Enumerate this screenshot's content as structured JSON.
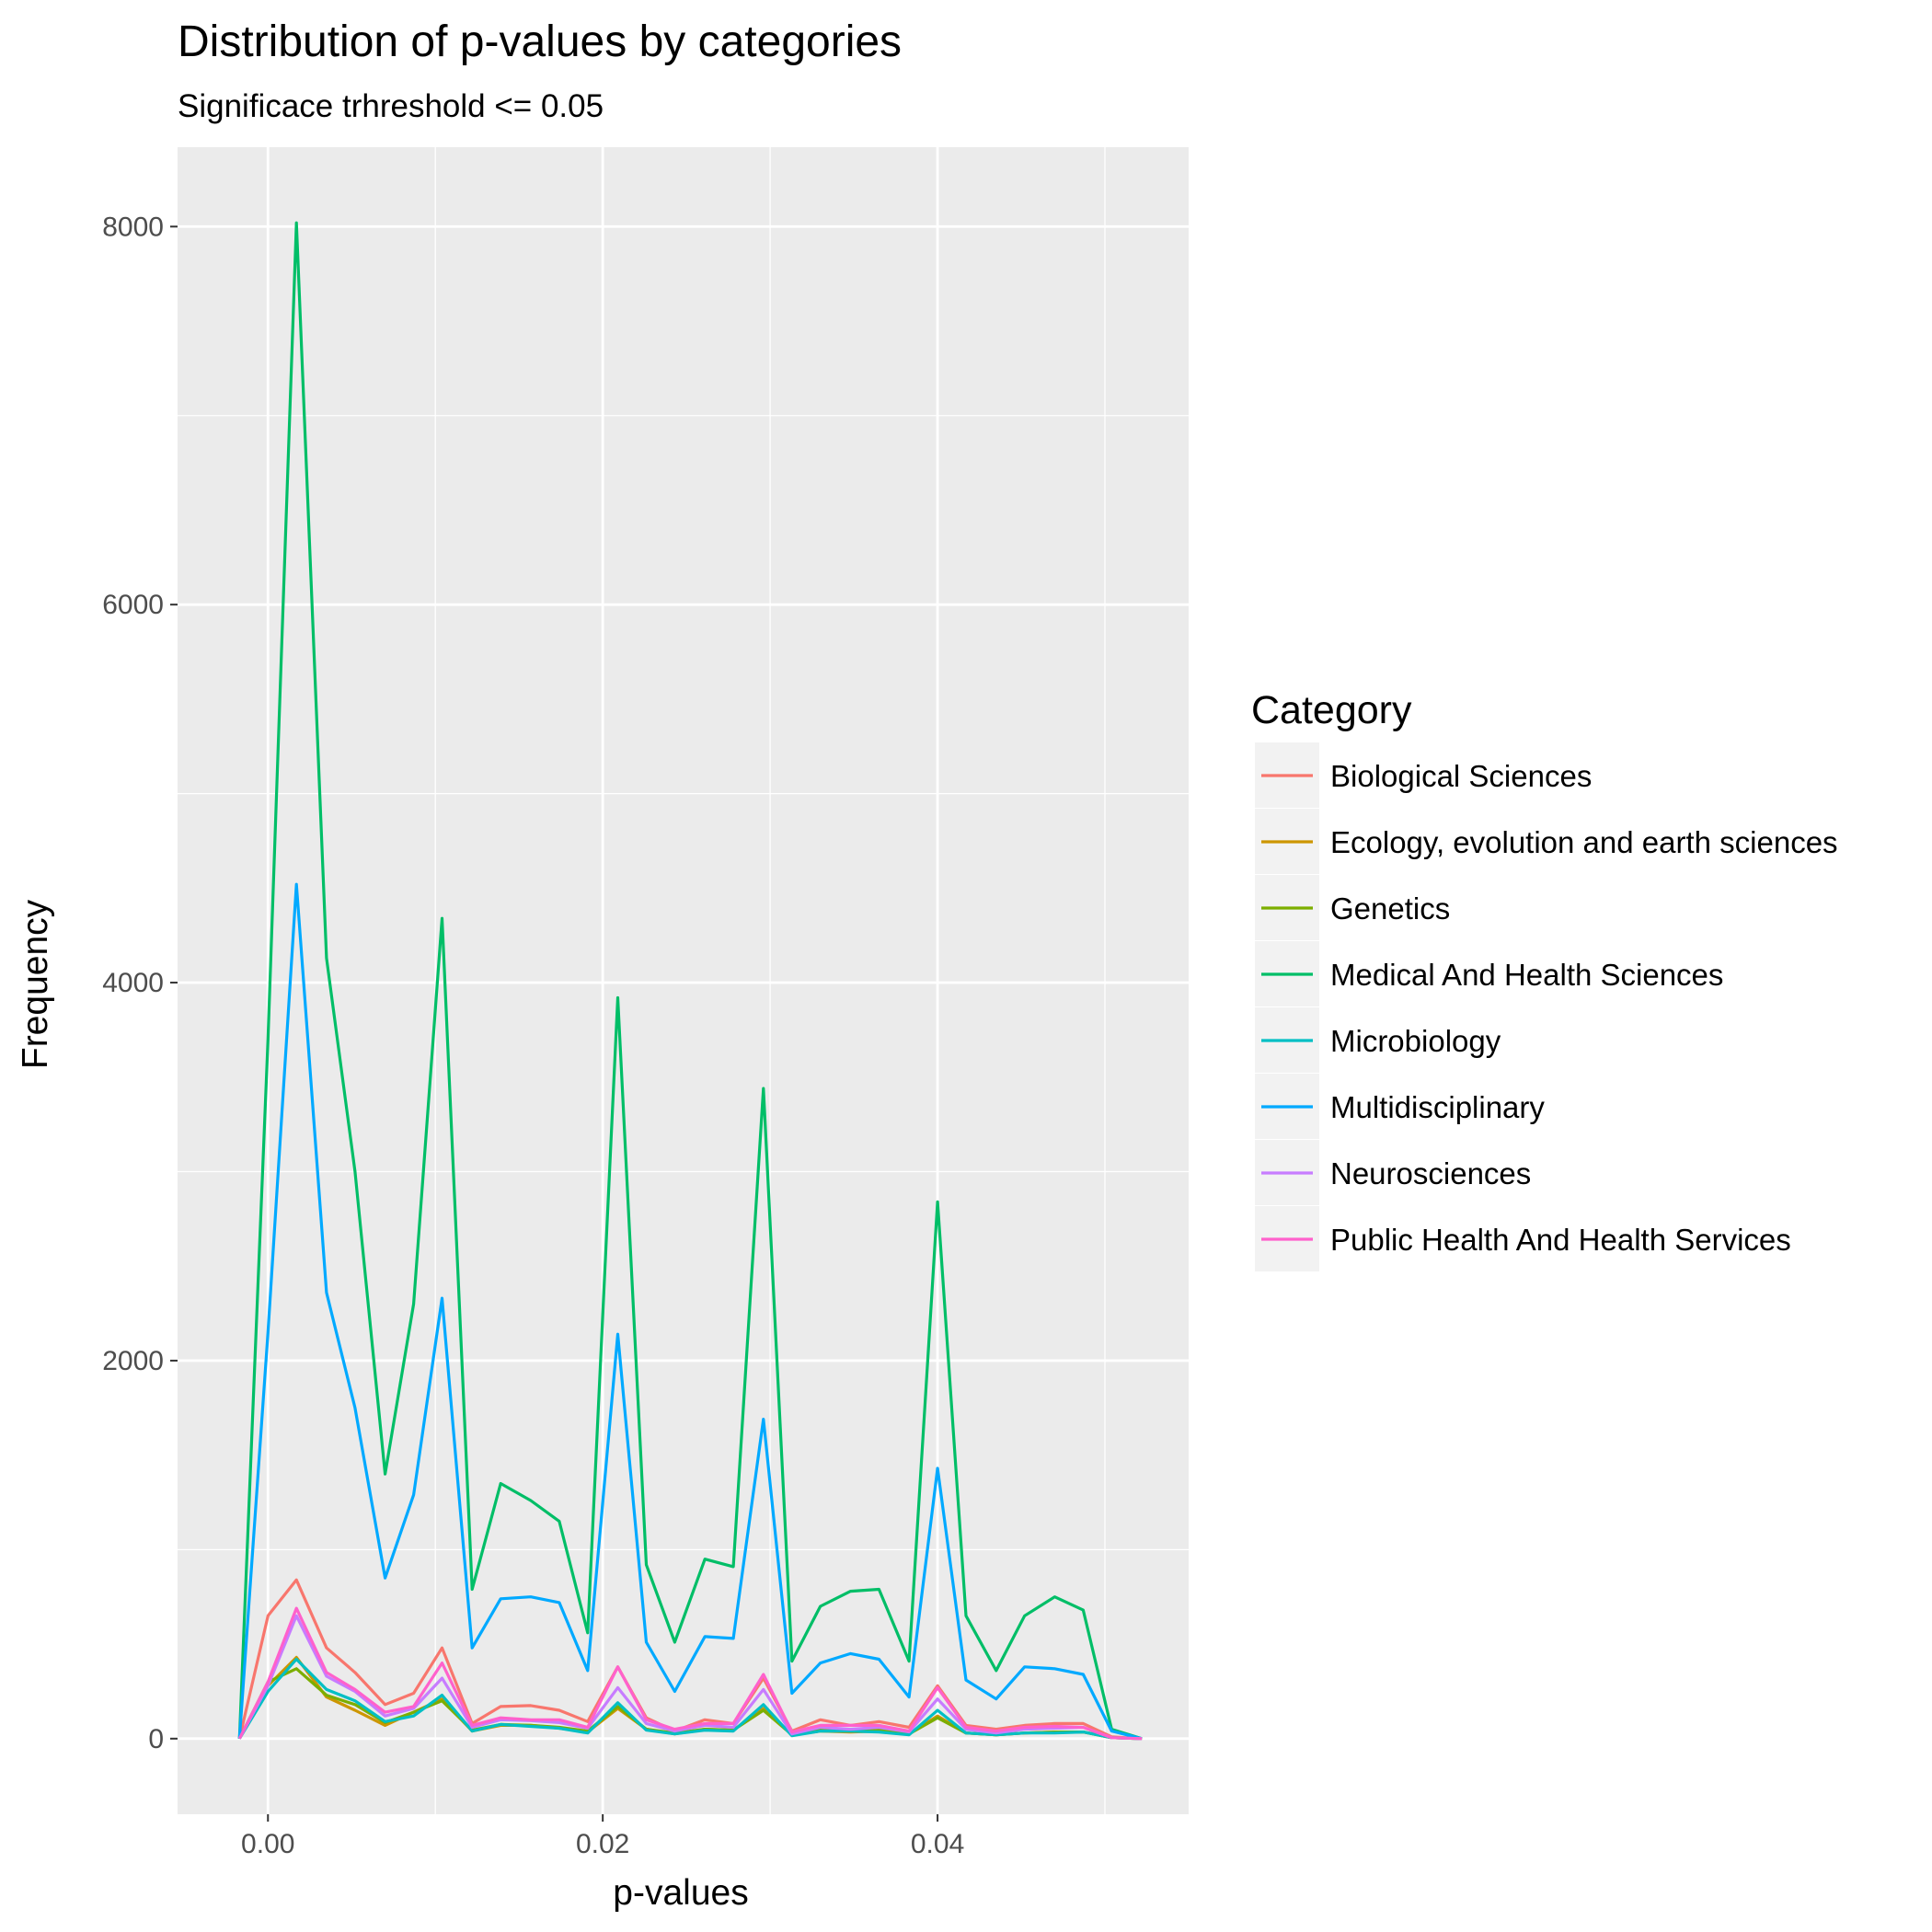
{
  "chart_data": {
    "type": "line",
    "title": "Distribution of p-values by categories",
    "subtitle": "Significace trhreshold <= 0.05",
    "xlabel": "p-values",
    "ylabel": "Frequency",
    "xlim": [
      -0.0054,
      0.055
    ],
    "ylim": [
      -400,
      8420
    ],
    "x_ticks": [
      0.0,
      0.02,
      0.04
    ],
    "x_tick_labels": [
      "0.00",
      "0.02",
      "0.04"
    ],
    "y_ticks": [
      0,
      2000,
      4000,
      6000,
      8000
    ],
    "y_tick_labels": [
      "0",
      "2000",
      "4000",
      "6000",
      "8000"
    ],
    "grid": true,
    "legend": {
      "title": "Category",
      "position": "right"
    },
    "x": [
      -0.0017,
      0.0,
      0.0017,
      0.0035,
      0.0052,
      0.007,
      0.0087,
      0.0104,
      0.0122,
      0.0139,
      0.0157,
      0.0174,
      0.0191,
      0.0209,
      0.0226,
      0.0243,
      0.0261,
      0.0278,
      0.0296,
      0.0313,
      0.033,
      0.0348,
      0.0365,
      0.0383,
      0.04,
      0.0417,
      0.0435,
      0.0452,
      0.047,
      0.0487,
      0.0504,
      0.0522
    ],
    "series": [
      {
        "name": "Biological Sciences",
        "color": "#F8766D",
        "values": [
          0,
          650,
          840,
          480,
          350,
          180,
          240,
          480,
          80,
          170,
          175,
          150,
          90,
          380,
          110,
          40,
          100,
          80,
          320,
          40,
          100,
          70,
          90,
          60,
          280,
          70,
          50,
          70,
          80,
          80,
          10,
          0
        ]
      },
      {
        "name": "Ecology, evolution and earth sciences",
        "color": "#CD9600",
        "values": [
          0,
          280,
          430,
          220,
          150,
          70,
          140,
          210,
          40,
          70,
          70,
          55,
          35,
          160,
          50,
          25,
          50,
          45,
          160,
          20,
          40,
          35,
          40,
          25,
          120,
          30,
          20,
          30,
          35,
          35,
          5,
          0
        ]
      },
      {
        "name": "Genetics",
        "color": "#7CAE00",
        "values": [
          0,
          300,
          370,
          230,
          180,
          85,
          140,
          200,
          45,
          75,
          70,
          60,
          40,
          170,
          50,
          30,
          50,
          45,
          150,
          20,
          45,
          40,
          45,
          25,
          110,
          30,
          20,
          30,
          35,
          35,
          5,
          0
        ]
      },
      {
        "name": "Medical And Health Sciences",
        "color": "#00BE67",
        "values": [
          0,
          3700,
          8020,
          4130,
          3000,
          1400,
          2300,
          4340,
          790,
          1350,
          1260,
          1150,
          560,
          3920,
          920,
          510,
          950,
          910,
          3440,
          410,
          700,
          780,
          790,
          410,
          2840,
          650,
          360,
          650,
          750,
          680,
          50,
          0
        ]
      },
      {
        "name": "Microbiology",
        "color": "#00BFC4",
        "values": [
          0,
          250,
          420,
          260,
          200,
          90,
          120,
          230,
          40,
          75,
          65,
          55,
          30,
          190,
          45,
          25,
          45,
          40,
          180,
          15,
          40,
          40,
          35,
          20,
          150,
          30,
          20,
          30,
          30,
          35,
          5,
          0
        ]
      },
      {
        "name": "Multidisciplinary",
        "color": "#00A9FF",
        "values": [
          0,
          2150,
          4520,
          2360,
          1750,
          850,
          1290,
          2330,
          480,
          740,
          750,
          720,
          360,
          2140,
          510,
          250,
          540,
          530,
          1690,
          240,
          400,
          450,
          420,
          220,
          1430,
          310,
          210,
          380,
          370,
          340,
          40,
          0
        ]
      },
      {
        "name": "Neurosciences",
        "color": "#C77CFF",
        "values": [
          0,
          280,
          650,
          330,
          250,
          120,
          160,
          320,
          60,
          100,
          95,
          85,
          55,
          270,
          80,
          40,
          70,
          60,
          260,
          25,
          60,
          50,
          60,
          35,
          210,
          50,
          30,
          50,
          55,
          60,
          5,
          0
        ]
      },
      {
        "name": "Public Health And Health Services",
        "color": "#FF61CC",
        "values": [
          0,
          300,
          690,
          350,
          260,
          140,
          170,
          400,
          70,
          110,
          100,
          100,
          60,
          380,
          100,
          50,
          80,
          80,
          340,
          35,
          70,
          70,
          70,
          40,
          270,
          60,
          40,
          60,
          65,
          60,
          5,
          0
        ]
      }
    ]
  }
}
